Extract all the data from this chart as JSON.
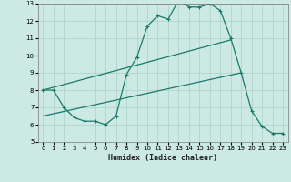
{
  "title": "",
  "xlabel": "Humidex (Indice chaleur)",
  "ylabel": "",
  "bg_color": "#cce9e4",
  "grid_color": "#b0d4cc",
  "line_color": "#1a7a6a",
  "xlim": [
    -0.5,
    23.5
  ],
  "ylim": [
    5,
    13
  ],
  "xticks": [
    0,
    1,
    2,
    3,
    4,
    5,
    6,
    7,
    8,
    9,
    10,
    11,
    12,
    13,
    14,
    15,
    16,
    17,
    18,
    19,
    20,
    21,
    22,
    23
  ],
  "yticks": [
    5,
    6,
    7,
    8,
    9,
    10,
    11,
    12,
    13
  ],
  "line1_x": [
    0,
    1,
    2,
    3,
    4,
    5,
    6,
    7,
    8,
    9,
    10,
    11,
    12,
    13,
    14,
    15,
    16,
    17,
    18,
    19,
    20,
    21,
    22,
    23
  ],
  "line1_y": [
    8.0,
    8.0,
    7.0,
    6.4,
    6.2,
    6.2,
    6.0,
    6.5,
    8.9,
    9.9,
    11.7,
    12.3,
    12.1,
    13.2,
    12.8,
    12.8,
    13.0,
    12.6,
    11.0,
    9.0,
    6.8,
    5.9,
    5.5,
    5.5
  ],
  "line2_x": [
    0,
    18
  ],
  "line2_y": [
    8.0,
    10.9
  ],
  "line3_x": [
    0,
    19
  ],
  "line3_y": [
    6.5,
    9.0
  ]
}
